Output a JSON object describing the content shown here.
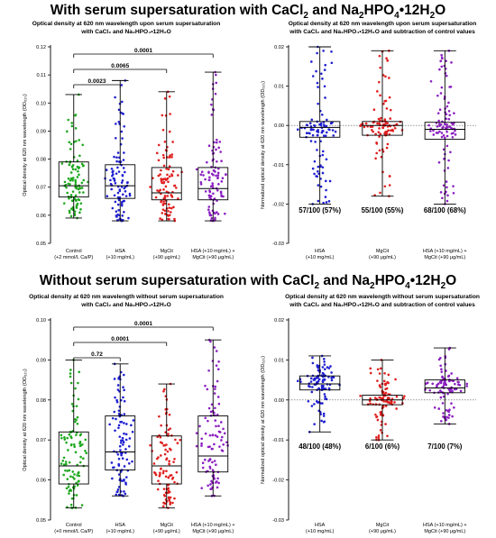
{
  "titles": {
    "top": {
      "prefix": "With serum supersaturation with CaCl",
      "mid": " and Na",
      "tail": "HPO",
      "end": "•12H",
      "last": "O"
    },
    "bottom": {
      "prefix": "Without serum supersaturation with CaCl",
      "mid": " and Na",
      "tail": "HPO",
      "end": "•12H",
      "last": "O"
    }
  },
  "chart_data": [
    {
      "type": "box",
      "title": "Optical density at 620 nm wavelength upon serum supersaturation with CaCl2 and Na2HPO4•12H2O",
      "title_lines": [
        "Optical density at 620 nm wavelength upon serum supersaturation",
        "with CaCl₂ and Na₂HPO₄•12H₂O"
      ],
      "ylabel": "Optical density at 620 nm wavelength (OD₆₂₀)",
      "ylim": [
        0.05,
        0.12
      ],
      "yticks": [
        "0.05",
        "0.06",
        "0.07",
        "0.08",
        "0.09",
        "0.10",
        "0.11",
        "0.12"
      ],
      "categories": [
        [
          "Control",
          "(+2 mmol/L Ca/P)"
        ],
        [
          "HSA",
          "(+10 mg/mL)"
        ],
        [
          "MgCit",
          "(+90 μg/mL)"
        ],
        [
          "HSA (+10 mg/mL) +",
          "MgCit (+90 μg/mL)"
        ]
      ],
      "colors": [
        "#1fa81f",
        "#1f1fd0",
        "#e01f1f",
        "#8a1fc0"
      ],
      "series": [
        {
          "min": 0.059,
          "q1": 0.0665,
          "median": 0.0705,
          "q3": 0.079,
          "max": 0.103
        },
        {
          "min": 0.058,
          "q1": 0.066,
          "median": 0.0705,
          "q3": 0.078,
          "max": 0.108
        },
        {
          "min": 0.058,
          "q1": 0.0655,
          "median": 0.068,
          "q3": 0.077,
          "max": 0.104
        },
        {
          "min": 0.058,
          "q1": 0.0655,
          "median": 0.0695,
          "q3": 0.077,
          "max": 0.111
        }
      ],
      "comparisons": [
        {
          "from": 0,
          "to": 1,
          "p": "0.0023"
        },
        {
          "from": 0,
          "to": 2,
          "p": "0.0065"
        },
        {
          "from": 0,
          "to": 3,
          "p": "0.0001"
        }
      ]
    },
    {
      "type": "box",
      "title": "Optical density at 620 nm wavelength upon serum supersaturation with CaCl2 and Na2HPO4•12H2O and subtraction of control values",
      "title_lines": [
        "Optical density at 620 nm wavelength upon serum supersaturation",
        "with CaCl₂ and Na₂HPO₄•12H₂O and subtraction of control values"
      ],
      "ylabel": "Normalized optical density at 620 nm wavelength (OD₆₂₀)",
      "ylim": [
        -0.03,
        0.02
      ],
      "yticks": [
        "-0.03",
        "-0.02",
        "-0.01",
        "0.00",
        "0.01",
        "0.02"
      ],
      "categories": [
        [
          "HSA",
          "(+10 mg/mL)"
        ],
        [
          "MgCit",
          "(+90 μg/mL)"
        ],
        [
          "HSA (+10 mg/mL) +",
          "MgCit (+90 μg/mL)"
        ]
      ],
      "colors": [
        "#1f1fd0",
        "#e01f1f",
        "#8a1fc0"
      ],
      "series": [
        {
          "min": -0.02,
          "q1": -0.003,
          "median": -0.0005,
          "q3": 0.001,
          "max": 0.02
        },
        {
          "min": -0.018,
          "q1": -0.0025,
          "median": 0.0,
          "q3": 0.001,
          "max": 0.019
        },
        {
          "min": -0.02,
          "q1": -0.0035,
          "median": -0.001,
          "q3": 0.0008,
          "max": 0.019
        }
      ],
      "annotations": [
        "57/100 (57%)",
        "55/100 (55%)",
        "68/100 (68%)"
      ],
      "reference_line": 0
    },
    {
      "type": "box",
      "title": "Optical density at 620 nm wavelength without serum supersaturation with CaCl2 and Na2HPO4•12H2O",
      "title_lines": [
        "Optical density at 620 nm wavelength without serum supersaturation",
        "with CaCl₂ and Na₂HPO₄•12H₂O"
      ],
      "ylabel": "Optical density at 620 nm wavelength (OD₆₂₀)",
      "ylim": [
        0.05,
        0.1
      ],
      "yticks": [
        "0.05",
        "0.06",
        "0.07",
        "0.08",
        "0.09",
        "0.10"
      ],
      "categories": [
        [
          "Control",
          "(+0 mmol/L Ca/P)"
        ],
        [
          "HSA",
          "(+10 mg/mL)"
        ],
        [
          "MgCit",
          "(+90 μg/mL)"
        ],
        [
          "HSA (+10 mg/mL) +",
          "MgCit (+90 μg/mL)"
        ]
      ],
      "colors": [
        "#1fa81f",
        "#1f1fd0",
        "#e01f1f",
        "#8a1fc0"
      ],
      "series": [
        {
          "min": 0.053,
          "q1": 0.059,
          "median": 0.0635,
          "q3": 0.072,
          "max": 0.09
        },
        {
          "min": 0.056,
          "q1": 0.0625,
          "median": 0.067,
          "q3": 0.076,
          "max": 0.089
        },
        {
          "min": 0.053,
          "q1": 0.059,
          "median": 0.0635,
          "q3": 0.071,
          "max": 0.084
        },
        {
          "min": 0.056,
          "q1": 0.062,
          "median": 0.066,
          "q3": 0.076,
          "max": 0.095
        }
      ],
      "comparisons": [
        {
          "from": 0,
          "to": 1,
          "p": "0.72"
        },
        {
          "from": 0,
          "to": 2,
          "p": "0.0001"
        },
        {
          "from": 0,
          "to": 3,
          "p": "0.0001"
        }
      ]
    },
    {
      "type": "box",
      "title": "Optical density at 620 nm wavelength without serum supersaturation with CaCl2 and Na2HPO4•12H2O and subtraction of control values",
      "title_lines": [
        "Optical density at 620 nm wavelength without serum supersaturation",
        "with CaCl₂ and Na₂HPO₄•12H₂O and subtraction of control values"
      ],
      "ylabel": "Normalized optical density at 620 nm wavelength (OD₆₂₀)",
      "ylim": [
        -0.03,
        0.02
      ],
      "yticks": [
        "-0.03",
        "-0.02",
        "-0.01",
        "0.00",
        "0.01",
        "0.02"
      ],
      "categories": [
        [
          "HSA",
          "(+10 mg/mL)"
        ],
        [
          "MgCit",
          "(+90 μg/mL)"
        ],
        [
          "HSA (+10 mg/mL) +",
          "MgCit (+90 μg/mL)"
        ]
      ],
      "colors": [
        "#1f1fd0",
        "#e01f1f",
        "#8a1fc0"
      ],
      "series": [
        {
          "min": -0.008,
          "q1": 0.0025,
          "median": 0.004,
          "q3": 0.006,
          "max": 0.011
        },
        {
          "min": -0.01,
          "q1": -0.0012,
          "median": 0.0,
          "q3": 0.0012,
          "max": 0.01
        },
        {
          "min": -0.006,
          "q1": 0.0018,
          "median": 0.003,
          "q3": 0.005,
          "max": 0.013
        }
      ],
      "annotations": [
        "48/100 (48%)",
        "6/100 (6%)",
        "7/100 (7%)"
      ],
      "reference_line": 0
    }
  ]
}
